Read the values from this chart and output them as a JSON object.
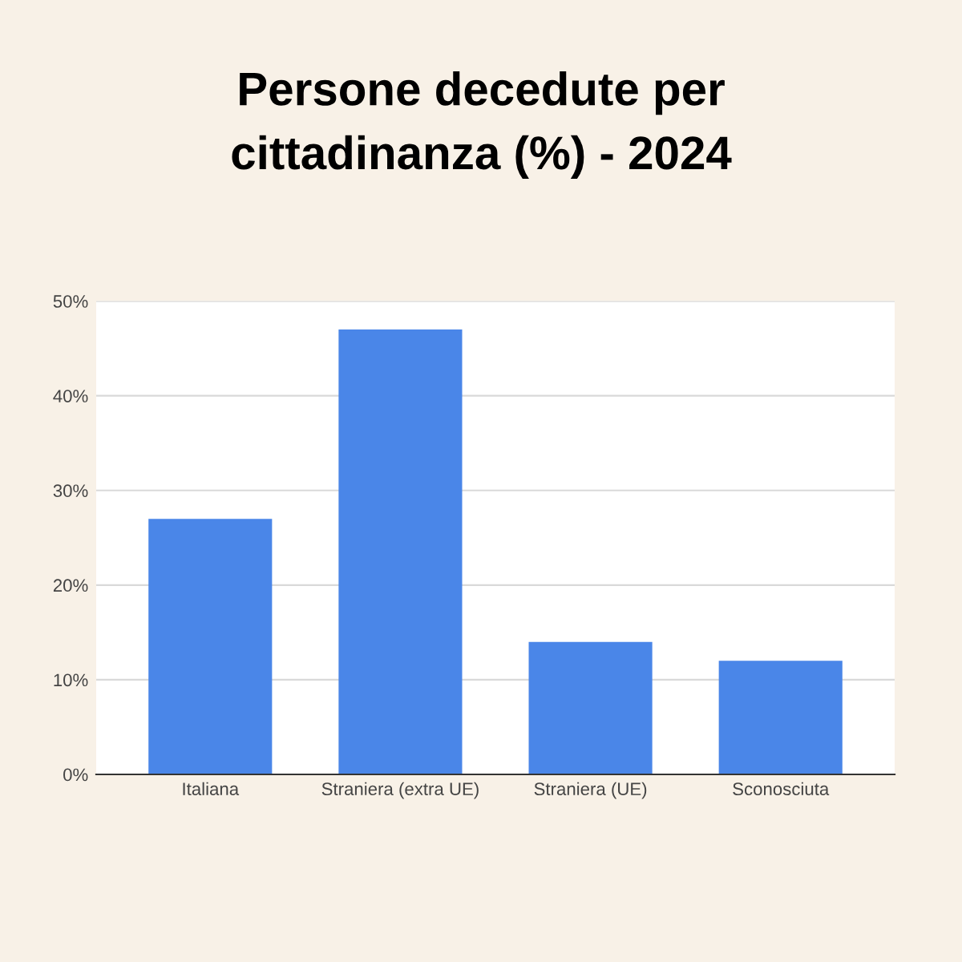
{
  "chart_data": {
    "type": "bar",
    "title": "Persone decedute per\ncittadinanza (%) - 2024",
    "categories": [
      "Italiana",
      "Straniera (extra UE)",
      "Straniera (UE)",
      "Sconosciuta"
    ],
    "values": [
      27,
      47,
      14,
      12
    ],
    "color": "#4a86e8",
    "ylim": [
      0,
      50
    ],
    "yticks": [
      {
        "value": 0,
        "label": "0%"
      },
      {
        "value": 10,
        "label": "10%"
      },
      {
        "value": 20,
        "label": "20%"
      },
      {
        "value": 30,
        "label": "30%"
      },
      {
        "value": 40,
        "label": "40%"
      },
      {
        "value": 50,
        "label": "50%"
      }
    ],
    "grid": "y"
  }
}
